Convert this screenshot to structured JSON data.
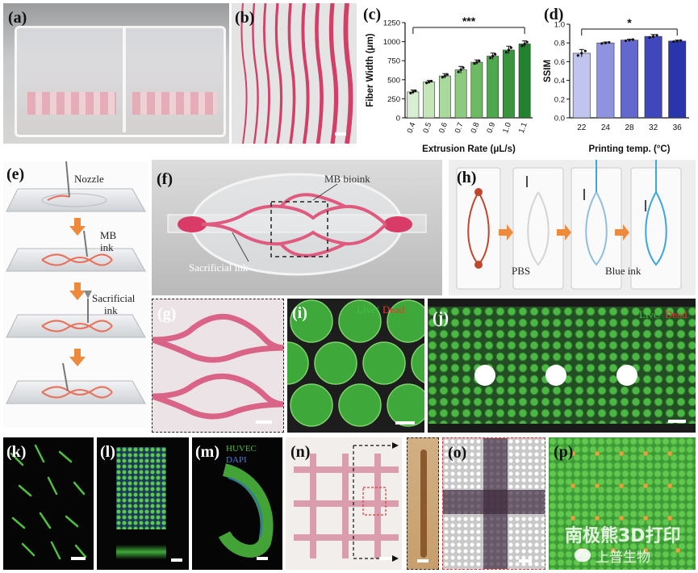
{
  "panels": {
    "a": {
      "label": "(a)"
    },
    "b": {
      "label": "(b)"
    },
    "c": {
      "label": "(c)"
    },
    "d": {
      "label": "(d)"
    },
    "e": {
      "label": "(e)",
      "nozzle": "Nozzle",
      "mb_ink_1": "MB",
      "mb_ink_2": "ink",
      "sac_1": "Sacrificial",
      "sac_2": "ink"
    },
    "f": {
      "label": "(f)",
      "mb_bioink": "MB bioink",
      "sacrificial": "Sacrificial ink"
    },
    "g": {
      "label": "(g)"
    },
    "h": {
      "label": "(h)",
      "pbs": "PBS",
      "blue_ink": "Blue ink"
    },
    "i": {
      "label": "(i)",
      "live": "Live/",
      "dead": "Dead"
    },
    "j": {
      "label": "(j)",
      "live": "Live/",
      "dead": "Dead"
    },
    "k": {
      "label": "(k)"
    },
    "l": {
      "label": "(l)"
    },
    "m": {
      "label": "(m)",
      "huvec": "HUVEC",
      "dapi": "DAPI"
    },
    "n": {
      "label": "(n)"
    },
    "o": {
      "label": "(o)"
    },
    "p": {
      "label": "(p)"
    }
  },
  "watermark": {
    "line1": "南极熊3D打印",
    "line2": "上普生物"
  },
  "colors": {
    "green": "#2f9e3a",
    "pink": "#d6436c",
    "blue_ink": "#3aa6e0",
    "orange_arrow": "#ee8a3c"
  },
  "chart_data": [
    {
      "id": "c",
      "type": "bar",
      "categories": [
        "0.4",
        "0.5",
        "0.6",
        "0.7",
        "0.8",
        "0.9",
        "1.0",
        "1.1"
      ],
      "values": [
        340,
        470,
        550,
        630,
        730,
        810,
        890,
        970
      ],
      "errors": [
        25,
        20,
        30,
        45,
        30,
        40,
        50,
        40
      ],
      "xlabel": "Extrusion Rate (μL/s)",
      "ylabel": "Fiber Width (μm)",
      "ylim": [
        0,
        1250
      ],
      "yticks": [
        "0",
        "250",
        "500",
        "750",
        "1000",
        "1250"
      ],
      "significance": "***",
      "colors": [
        "#d9efd3",
        "#c4e6b9",
        "#aad99c",
        "#8ccb7f",
        "#6cbb63",
        "#4ea84d",
        "#37963d",
        "#23822f"
      ]
    },
    {
      "id": "d",
      "type": "bar",
      "categories": [
        "22",
        "24",
        "28",
        "32",
        "36"
      ],
      "values": [
        0.69,
        0.8,
        0.83,
        0.87,
        0.82
      ],
      "errors": [
        0.04,
        0.01,
        0.01,
        0.02,
        0.01
      ],
      "xlabel": "Printing temp. (°C)",
      "ylabel": "SSIM",
      "ylim": [
        0,
        1.0
      ],
      "yticks": [
        "0.0",
        "0.2",
        "0.4",
        "0.6",
        "0.8",
        "1.0"
      ],
      "significance": "*",
      "colors": [
        "#c1c5ee",
        "#8f93df",
        "#6268cf",
        "#4047bd",
        "#2a34ad"
      ]
    }
  ]
}
